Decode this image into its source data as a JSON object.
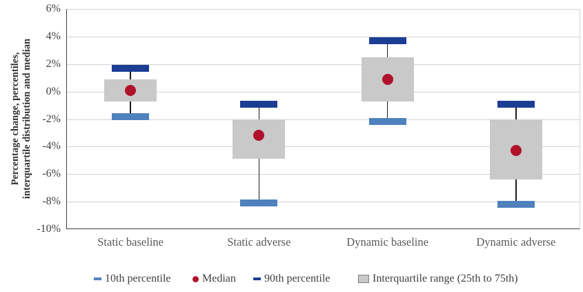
{
  "chart_data": {
    "type": "boxplot",
    "title": "",
    "ylabel_line1": "Percentage change, percentiles,",
    "ylabel_line2": "interquartile distribution and median",
    "ylim": [
      -10,
      6
    ],
    "ytick_step": 2,
    "ytick_values": [
      6,
      4,
      2,
      0,
      -2,
      -4,
      -6,
      -8,
      -10
    ],
    "ytick_labels": [
      "6%",
      "4%",
      "2%",
      "0%",
      "-2%",
      "-4%",
      "-6%",
      "-8%",
      "-10%"
    ],
    "gridline_values": [
      4,
      2,
      0,
      -2,
      -4,
      -6,
      -8
    ],
    "grid_on": true,
    "categories": [
      "Static baseline",
      "Static adverse",
      "Dynamic baseline",
      "Dynamic adverse"
    ],
    "series": [
      {
        "category": "Static baseline",
        "p10": -1.8,
        "p25": -0.7,
        "median": 0.1,
        "p75": 0.9,
        "p90": 1.7
      },
      {
        "category": "Static adverse",
        "p10": -8.1,
        "p25": -4.9,
        "median": -3.2,
        "p75": -2.0,
        "p90": -0.9
      },
      {
        "category": "Dynamic baseline",
        "p10": -2.2,
        "p25": -0.7,
        "median": 0.9,
        "p75": 2.5,
        "p90": 3.7
      },
      {
        "category": "Dynamic adverse",
        "p10": -8.2,
        "p25": -6.4,
        "median": -4.3,
        "p75": -2.0,
        "p90": -0.9
      }
    ],
    "legend": [
      {
        "label": "10th percentile",
        "marker": "dash",
        "color": "#4F81BD"
      },
      {
        "label": "Median",
        "marker": "dot",
        "color": "#B0122C"
      },
      {
        "label": "90th percentile",
        "marker": "dash",
        "color": "#1B3E94"
      },
      {
        "label": "Interquartile range (25th to 75th)",
        "marker": "square",
        "color": "#C9C9C9"
      }
    ],
    "legend_position": "bottom",
    "colors": {
      "p10_bar": "#4F81BD",
      "p90_bar": "#1B3E94",
      "median_dot": "#B0122C",
      "iqr_box": "#C9C9C9",
      "whisker": "#1A1A1A",
      "gridline": "#D3D3D3",
      "axis": "#404040"
    }
  }
}
